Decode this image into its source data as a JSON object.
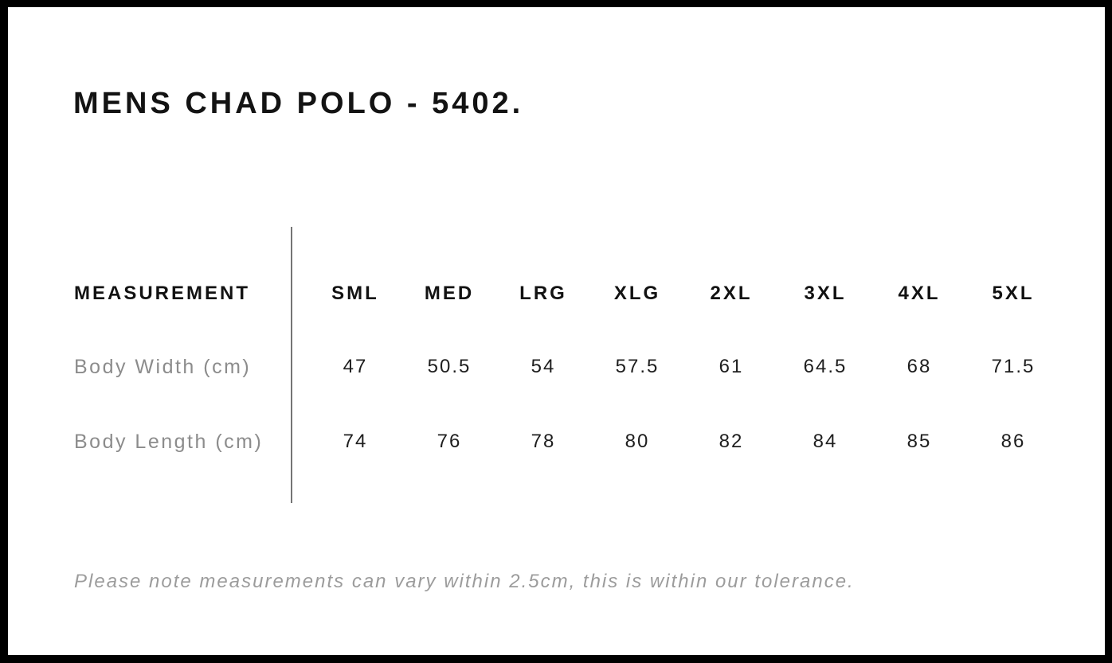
{
  "page": {
    "title": "MENS CHAD POLO - 5402.",
    "note": "Please note measurements can vary within 2.5cm, this is within our tolerance."
  },
  "size_table": {
    "header_label": "MEASUREMENT",
    "sizes": [
      "SML",
      "MED",
      "LRG",
      "XLG",
      "2XL",
      "3XL",
      "4XL",
      "5XL"
    ],
    "rows": [
      {
        "label": "Body Width (cm)",
        "values": [
          "47",
          "50.5",
          "54",
          "57.5",
          "61",
          "64.5",
          "68",
          "71.5"
        ]
      },
      {
        "label": "Body Length (cm)",
        "values": [
          "74",
          "76",
          "78",
          "80",
          "82",
          "84",
          "85",
          "86"
        ]
      }
    ]
  },
  "colors": {
    "frame": "#000000",
    "background": "#ffffff",
    "heading_text": "#131313",
    "value_text": "#1e1e1e",
    "row_label_text": "#8c8c8c",
    "note_text": "#9c9c9c",
    "divider": "#757575"
  }
}
